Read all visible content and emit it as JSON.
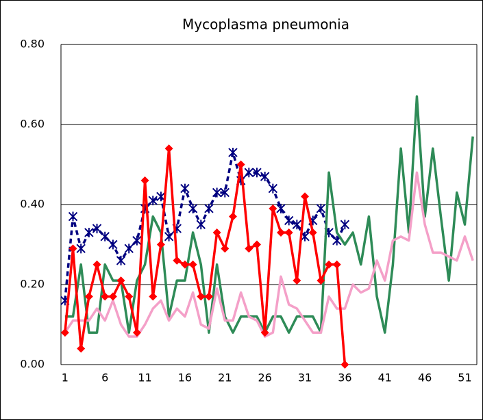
{
  "chart_data": {
    "type": "line",
    "title": "Mycoplasma pneumonia",
    "x": [
      1,
      2,
      3,
      4,
      5,
      6,
      7,
      8,
      9,
      10,
      11,
      12,
      13,
      14,
      15,
      16,
      17,
      18,
      19,
      20,
      21,
      22,
      23,
      24,
      25,
      26,
      27,
      28,
      29,
      30,
      31,
      32,
      33,
      34,
      35,
      36,
      37,
      38,
      39,
      40,
      41,
      42,
      43,
      44,
      45,
      46,
      47,
      48,
      49,
      50,
      51,
      52
    ],
    "xlim": [
      0.5,
      52.5
    ],
    "xticks": [
      1,
      6,
      11,
      16,
      21,
      26,
      31,
      36,
      41,
      46,
      51
    ],
    "ylim": [
      0,
      0.8
    ],
    "yticks": [
      {
        "value": 0,
        "label": "0.00"
      },
      {
        "value": 0.2,
        "label": "0.20"
      },
      {
        "value": 0.4,
        "label": "0.40"
      },
      {
        "value": 0.6,
        "label": "0.60"
      },
      {
        "value": 0.8,
        "label": "0.80"
      }
    ],
    "grid": true,
    "series": [
      {
        "color": "#000080",
        "dash": true,
        "marker": "asterisk",
        "values": [
          0.16,
          0.37,
          0.29,
          0.33,
          0.34,
          0.32,
          0.3,
          0.26,
          0.29,
          0.31,
          0.39,
          0.41,
          0.42,
          0.32,
          0.34,
          0.44,
          0.39,
          0.35,
          0.39,
          0.43,
          0.43,
          0.53,
          0.46,
          0.48,
          0.48,
          0.47,
          0.44,
          0.39,
          0.36,
          0.35,
          0.32,
          0.36,
          0.39,
          0.33,
          0.31,
          0.35,
          null,
          null,
          null,
          null,
          null,
          null,
          null,
          null,
          null,
          null,
          null,
          null,
          null,
          null,
          null,
          null
        ]
      },
      {
        "color": "#2e8b57",
        "values": [
          0.12,
          0.12,
          0.25,
          0.08,
          0.08,
          0.25,
          0.21,
          0.21,
          0.08,
          0.21,
          0.25,
          0.37,
          0.33,
          0.12,
          0.21,
          0.21,
          0.33,
          0.25,
          0.08,
          0.25,
          0.12,
          0.08,
          0.12,
          0.12,
          0.12,
          0.08,
          0.12,
          0.12,
          0.08,
          0.12,
          0.12,
          0.12,
          0.08,
          0.48,
          0.33,
          0.3,
          0.33,
          0.25,
          0.37,
          0.17,
          0.08,
          0.25,
          0.54,
          0.33,
          0.67,
          0.37,
          0.54,
          0.37,
          0.21,
          0.43,
          0.35,
          0.57
        ]
      },
      {
        "color": "#f4a0c8",
        "values": [
          0.08,
          0.11,
          0.11,
          0.11,
          0.14,
          0.11,
          0.16,
          0.1,
          0.07,
          0.07,
          0.1,
          0.14,
          0.16,
          0.11,
          0.14,
          0.12,
          0.18,
          0.1,
          0.09,
          0.19,
          0.11,
          0.11,
          0.18,
          0.12,
          0.11,
          0.07,
          0.08,
          0.22,
          0.15,
          0.14,
          0.11,
          0.08,
          0.08,
          0.17,
          0.14,
          0.14,
          0.2,
          0.18,
          0.19,
          0.26,
          0.21,
          0.31,
          0.32,
          0.31,
          0.48,
          0.35,
          0.28,
          0.28,
          0.27,
          0.26,
          0.32,
          0.26
        ]
      },
      {
        "color": "#ff0000",
        "marker": "diamond",
        "values": [
          0.08,
          0.29,
          0.04,
          0.17,
          0.25,
          0.17,
          0.17,
          0.21,
          0.17,
          0.08,
          0.46,
          0.17,
          0.3,
          0.54,
          0.26,
          0.25,
          0.25,
          0.17,
          0.17,
          0.33,
          0.29,
          0.37,
          0.5,
          0.29,
          0.3,
          0.08,
          0.39,
          0.33,
          0.33,
          0.21,
          0.42,
          0.33,
          0.21,
          0.25,
          0.25,
          0.0,
          null,
          null,
          null,
          null,
          null,
          null,
          null,
          null,
          null,
          null,
          null,
          null,
          null,
          null,
          null,
          null
        ]
      }
    ]
  }
}
